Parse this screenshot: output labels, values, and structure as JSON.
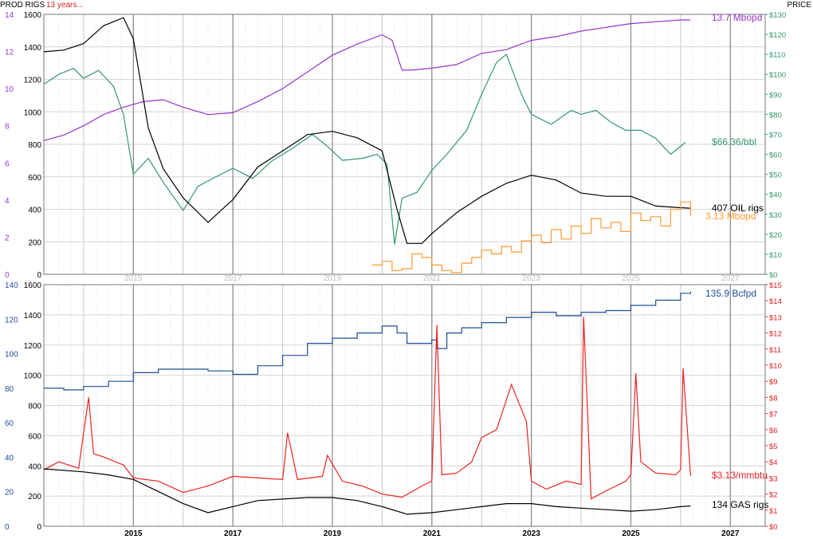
{
  "header": {
    "left_label": "PROD RIGS",
    "note": "13 years...",
    "right_label": "PRICE"
  },
  "colors": {
    "oil_production": "#9933cc",
    "oil_price": "#339966",
    "oil_rigs": "#000000",
    "small_production": "#ff9933",
    "gas_production": "#1f4e9a",
    "gas_price": "#ee2222",
    "gas_rigs": "#000000",
    "grid": "#d9d9d9"
  },
  "chart_data": [
    {
      "type": "line",
      "panel": "oil",
      "x_range": [
        2013.2,
        2027.7
      ],
      "x_ticks": [
        "2015",
        "2017",
        "2019",
        "2021",
        "2023",
        "2025",
        "2027"
      ],
      "y_left_ticks": [
        "0",
        "200",
        "400",
        "600",
        "800",
        "1000",
        "1200",
        "1400",
        "1600"
      ],
      "y_left_range": [
        0,
        1600
      ],
      "y_prod_ticks": [
        "0",
        "2",
        "4",
        "6",
        "8",
        "10",
        "12",
        "14"
      ],
      "y_prod_range": [
        0,
        14
      ],
      "y_right_ticks": [
        "$0",
        "$10",
        "$20",
        "$30",
        "$40",
        "$50",
        "$60",
        "$70",
        "$80",
        "$90",
        "$100",
        "$110",
        "$120",
        "$130"
      ],
      "y_right_range": [
        0,
        130
      ],
      "series": [
        {
          "name": "13.7 Mbopd",
          "axis": "prod",
          "x": [
            2013.2,
            2013.6,
            2014.0,
            2014.4,
            2014.8,
            2015.2,
            2015.6,
            2016.0,
            2016.5,
            2017.0,
            2017.5,
            2018.0,
            2018.5,
            2019.0,
            2019.5,
            2020.0,
            2020.2,
            2020.4,
            2020.6,
            2021.0,
            2021.5,
            2022.0,
            2022.5,
            2023.0,
            2023.5,
            2024.0,
            2024.5,
            2025.0,
            2025.5,
            2026.0,
            2026.2
          ],
          "y": [
            7.2,
            7.5,
            8.0,
            8.6,
            9.0,
            9.3,
            9.4,
            9.0,
            8.6,
            8.7,
            9.3,
            10.0,
            10.9,
            11.8,
            12.4,
            12.9,
            12.6,
            11.0,
            11.0,
            11.1,
            11.3,
            11.9,
            12.1,
            12.6,
            12.8,
            13.1,
            13.3,
            13.5,
            13.6,
            13.7,
            13.7
          ]
        },
        {
          "name": "$66.36/bbl",
          "axis": "price",
          "x": [
            2013.2,
            2013.5,
            2013.8,
            2014.0,
            2014.3,
            2014.6,
            2014.8,
            2015.0,
            2015.3,
            2015.6,
            2016.0,
            2016.3,
            2016.6,
            2017.0,
            2017.4,
            2017.8,
            2018.2,
            2018.6,
            2018.9,
            2019.2,
            2019.6,
            2019.9,
            2020.1,
            2020.25,
            2020.4,
            2020.7,
            2021.0,
            2021.3,
            2021.7,
            2022.0,
            2022.3,
            2022.5,
            2022.8,
            2023.0,
            2023.4,
            2023.8,
            2024.0,
            2024.3,
            2024.6,
            2024.9,
            2025.2,
            2025.5,
            2025.8,
            2026.1
          ],
          "y": [
            95,
            100,
            103,
            98,
            102,
            94,
            80,
            50,
            58,
            46,
            32,
            44,
            48,
            53,
            48,
            57,
            63,
            70,
            64,
            57,
            58,
            60,
            55,
            15,
            38,
            41,
            52,
            60,
            72,
            90,
            106,
            110,
            90,
            80,
            75,
            82,
            80,
            82,
            76,
            72,
            72,
            68,
            60,
            66
          ]
        },
        {
          "name": "407 OIL rigs",
          "axis": "rigs",
          "x": [
            2013.2,
            2013.6,
            2014.0,
            2014.4,
            2014.8,
            2015.0,
            2015.3,
            2015.6,
            2016.0,
            2016.5,
            2017.0,
            2017.5,
            2018.0,
            2018.5,
            2019.0,
            2019.5,
            2020.0,
            2020.3,
            2020.5,
            2020.8,
            2021.0,
            2021.5,
            2022.0,
            2022.5,
            2023.0,
            2023.5,
            2024.0,
            2024.5,
            2025.0,
            2025.5,
            2026.0,
            2026.2
          ],
          "y": [
            1370,
            1380,
            1420,
            1530,
            1580,
            1450,
            900,
            650,
            470,
            320,
            460,
            660,
            760,
            860,
            880,
            840,
            760,
            400,
            190,
            190,
            250,
            380,
            480,
            560,
            610,
            580,
            500,
            480,
            480,
            420,
            410,
            407
          ]
        },
        {
          "name": "3.13 Mbopd",
          "axis": "prod",
          "x": [
            2019.8,
            2020.0,
            2020.2,
            2020.4,
            2020.6,
            2020.8,
            2021.0,
            2021.2,
            2021.4,
            2021.6,
            2021.8,
            2022.0,
            2022.2,
            2022.4,
            2022.6,
            2022.8,
            2023.0,
            2023.2,
            2023.4,
            2023.6,
            2023.8,
            2024.0,
            2024.2,
            2024.4,
            2024.6,
            2024.8,
            2025.0,
            2025.2,
            2025.4,
            2025.6,
            2025.8,
            2026.0,
            2026.2
          ],
          "y": [
            0.5,
            0.7,
            0.2,
            0.3,
            1.1,
            0.9,
            0.5,
            0.2,
            0.1,
            0.6,
            0.9,
            1.3,
            1.1,
            1.5,
            1.2,
            1.8,
            2.1,
            1.7,
            2.4,
            1.9,
            2.6,
            2.2,
            3.0,
            2.5,
            2.8,
            2.3,
            3.3,
            2.9,
            3.1,
            2.6,
            3.5,
            3.9,
            3.13
          ]
        }
      ]
    },
    {
      "type": "line",
      "panel": "gas",
      "x_range": [
        2013.2,
        2027.7
      ],
      "x_ticks": [
        "2015",
        "2017",
        "2019",
        "2021",
        "2023",
        "2025",
        "2027"
      ],
      "y_left_ticks": [
        "0",
        "200",
        "400",
        "600",
        "800",
        "1000",
        "1200",
        "1400",
        "1600"
      ],
      "y_left_range": [
        0,
        1600
      ],
      "y_prod_ticks": [
        "0",
        "20",
        "40",
        "60",
        "80",
        "100",
        "120",
        "140"
      ],
      "y_prod_range": [
        0,
        140
      ],
      "y_right_ticks": [
        "$0",
        "$1",
        "$2",
        "$3",
        "$4",
        "$5",
        "$6",
        "$7",
        "$8",
        "$9",
        "$10",
        "$11",
        "$12",
        "$13",
        "$14",
        "$15"
      ],
      "y_right_range": [
        0,
        15
      ],
      "series": [
        {
          "name": "135.9 Bcfpd",
          "axis": "prod",
          "x": [
            2013.2,
            2013.6,
            2014.0,
            2014.5,
            2015.0,
            2015.5,
            2016.0,
            2016.5,
            2017.0,
            2017.5,
            2018.0,
            2018.5,
            2019.0,
            2019.5,
            2020.0,
            2020.3,
            2020.5,
            2021.0,
            2021.1,
            2021.3,
            2021.6,
            2022.0,
            2022.5,
            2023.0,
            2023.5,
            2024.0,
            2024.5,
            2025.0,
            2025.5,
            2026.0,
            2026.2
          ],
          "y": [
            80,
            79,
            81,
            84,
            89,
            91,
            91,
            90,
            88,
            93,
            99,
            106,
            109,
            112,
            116,
            112,
            106,
            108,
            103,
            112,
            115,
            118,
            121,
            124,
            122,
            124,
            125,
            128,
            131,
            135,
            135.9
          ]
        },
        {
          "name": "$3.13/mmbtu",
          "axis": "price",
          "x": [
            2013.2,
            2013.5,
            2013.9,
            2014.1,
            2014.2,
            2014.4,
            2014.8,
            2015.0,
            2015.5,
            2016.0,
            2016.5,
            2017.0,
            2017.5,
            2018.0,
            2018.1,
            2018.3,
            2018.8,
            2018.9,
            2019.2,
            2019.6,
            2020.0,
            2020.4,
            2020.8,
            2021.0,
            2021.1,
            2021.2,
            2021.5,
            2021.8,
            2022.0,
            2022.3,
            2022.6,
            2022.9,
            2023.0,
            2023.3,
            2023.7,
            2024.0,
            2024.05,
            2024.2,
            2024.5,
            2024.9,
            2025.0,
            2025.1,
            2025.2,
            2025.5,
            2025.9,
            2026.0,
            2026.05,
            2026.2
          ],
          "y": [
            3.5,
            4.0,
            3.6,
            8.0,
            4.5,
            4.3,
            3.8,
            3.0,
            2.8,
            2.1,
            2.5,
            3.1,
            3.0,
            2.9,
            5.8,
            2.9,
            3.1,
            4.4,
            2.8,
            2.5,
            2.0,
            1.8,
            2.5,
            2.8,
            12.5,
            3.2,
            3.3,
            4.0,
            5.5,
            6.0,
            8.8,
            6.5,
            2.8,
            2.3,
            2.8,
            2.6,
            13.0,
            1.7,
            2.2,
            2.8,
            3.2,
            9.5,
            4.0,
            3.3,
            3.2,
            3.5,
            9.8,
            3.13
          ]
        },
        {
          "name": "134 GAS rigs",
          "axis": "rigs",
          "x": [
            2013.2,
            2014.0,
            2014.5,
            2015.0,
            2015.5,
            2016.0,
            2016.5,
            2017.0,
            2017.5,
            2018.0,
            2018.5,
            2019.0,
            2019.5,
            2020.0,
            2020.5,
            2021.0,
            2021.5,
            2022.0,
            2022.5,
            2023.0,
            2023.5,
            2024.0,
            2024.5,
            2025.0,
            2025.5,
            2026.0,
            2026.2
          ],
          "y": [
            380,
            360,
            340,
            310,
            230,
            150,
            90,
            130,
            170,
            180,
            190,
            190,
            170,
            130,
            80,
            90,
            110,
            130,
            150,
            150,
            130,
            120,
            110,
            100,
            110,
            130,
            134
          ]
        }
      ]
    }
  ]
}
